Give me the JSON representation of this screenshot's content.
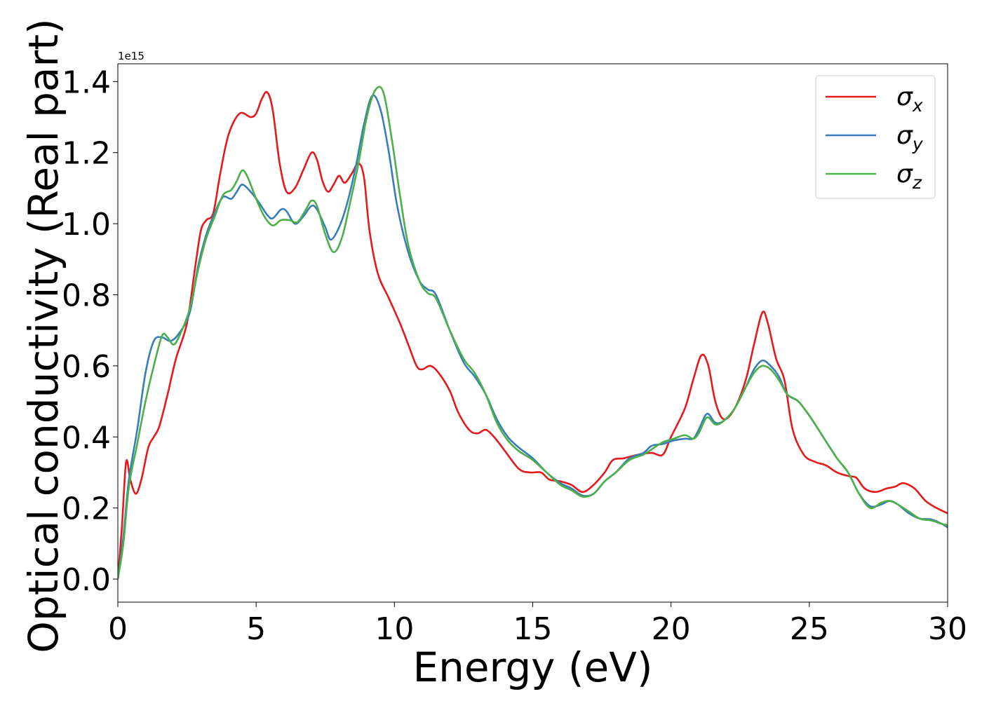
{
  "chart_data": {
    "type": "line",
    "xlabel": "Energy (eV)",
    "ylabel": "Optical conductivity (Real part)",
    "y_offset_label": "1e15",
    "xlim": [
      0,
      30
    ],
    "ylim": [
      -0.065,
      1.45
    ],
    "y_scale_factor": 1000000000000000.0,
    "xticks": [
      0,
      5,
      10,
      15,
      20,
      25,
      30
    ],
    "xtick_labels": [
      "0",
      "5",
      "10",
      "15",
      "20",
      "25",
      "30"
    ],
    "yticks": [
      0.0,
      0.2,
      0.4,
      0.6,
      0.8,
      1.0,
      1.2,
      1.4
    ],
    "ytick_labels": [
      "0.0",
      "0.2",
      "0.4",
      "0.6",
      "0.8",
      "1.0",
      "1.2",
      "1.4"
    ],
    "grid": false,
    "legend_position": "top-right",
    "series": [
      {
        "name": "σx",
        "label_base": "σ",
        "label_sub": "x",
        "color": "#e41a1c",
        "points": [
          [
            0,
            0
          ],
          [
            0.15,
            0.15
          ],
          [
            0.3,
            0.33
          ],
          [
            0.45,
            0.28
          ],
          [
            0.65,
            0.24
          ],
          [
            0.85,
            0.28
          ],
          [
            1.1,
            0.37
          ],
          [
            1.3,
            0.4
          ],
          [
            1.5,
            0.43
          ],
          [
            1.8,
            0.52
          ],
          [
            2.1,
            0.62
          ],
          [
            2.5,
            0.72
          ],
          [
            2.8,
            0.88
          ],
          [
            3.0,
            0.98
          ],
          [
            3.2,
            1.01
          ],
          [
            3.45,
            1.03
          ],
          [
            3.7,
            1.14
          ],
          [
            4.0,
            1.25
          ],
          [
            4.4,
            1.31
          ],
          [
            4.8,
            1.3
          ],
          [
            5.0,
            1.31
          ],
          [
            5.2,
            1.35
          ],
          [
            5.4,
            1.37
          ],
          [
            5.6,
            1.32
          ],
          [
            5.85,
            1.17
          ],
          [
            6.1,
            1.09
          ],
          [
            6.4,
            1.1
          ],
          [
            6.7,
            1.15
          ],
          [
            7.0,
            1.2
          ],
          [
            7.2,
            1.18
          ],
          [
            7.4,
            1.12
          ],
          [
            7.6,
            1.09
          ],
          [
            7.8,
            1.11
          ],
          [
            8.0,
            1.135
          ],
          [
            8.2,
            1.115
          ],
          [
            8.45,
            1.14
          ],
          [
            8.7,
            1.17
          ],
          [
            8.9,
            1.13
          ],
          [
            9.1,
            0.98
          ],
          [
            9.4,
            0.86
          ],
          [
            9.8,
            0.79
          ],
          [
            10.2,
            0.72
          ],
          [
            10.5,
            0.66
          ],
          [
            10.8,
            0.6
          ],
          [
            11.0,
            0.59
          ],
          [
            11.3,
            0.6
          ],
          [
            11.6,
            0.58
          ],
          [
            12.0,
            0.53
          ],
          [
            12.3,
            0.47
          ],
          [
            12.7,
            0.42
          ],
          [
            13.0,
            0.41
          ],
          [
            13.3,
            0.42
          ],
          [
            13.6,
            0.4
          ],
          [
            14.0,
            0.36
          ],
          [
            14.5,
            0.31
          ],
          [
            14.9,
            0.3
          ],
          [
            15.3,
            0.3
          ],
          [
            15.6,
            0.28
          ],
          [
            16.0,
            0.275
          ],
          [
            16.4,
            0.265
          ],
          [
            16.8,
            0.245
          ],
          [
            17.2,
            0.265
          ],
          [
            17.6,
            0.3
          ],
          [
            17.9,
            0.335
          ],
          [
            18.3,
            0.34
          ],
          [
            18.8,
            0.35
          ],
          [
            19.3,
            0.355
          ],
          [
            19.7,
            0.35
          ],
          [
            20.0,
            0.4
          ],
          [
            20.5,
            0.48
          ],
          [
            20.8,
            0.56
          ],
          [
            21.1,
            0.63
          ],
          [
            21.35,
            0.6
          ],
          [
            21.6,
            0.5
          ],
          [
            21.9,
            0.45
          ],
          [
            22.3,
            0.48
          ],
          [
            22.7,
            0.56
          ],
          [
            23.0,
            0.66
          ],
          [
            23.3,
            0.75
          ],
          [
            23.5,
            0.72
          ],
          [
            23.8,
            0.62
          ],
          [
            24.1,
            0.56
          ],
          [
            24.4,
            0.42
          ],
          [
            24.8,
            0.35
          ],
          [
            25.2,
            0.33
          ],
          [
            25.6,
            0.32
          ],
          [
            26.0,
            0.3
          ],
          [
            26.4,
            0.29
          ],
          [
            26.7,
            0.285
          ],
          [
            27.0,
            0.255
          ],
          [
            27.4,
            0.245
          ],
          [
            27.8,
            0.255
          ],
          [
            28.1,
            0.26
          ],
          [
            28.4,
            0.27
          ],
          [
            28.8,
            0.255
          ],
          [
            29.2,
            0.22
          ],
          [
            29.6,
            0.2
          ],
          [
            30.0,
            0.185
          ]
        ]
      },
      {
        "name": "σy",
        "label_base": "σ",
        "label_sub": "y",
        "color": "#377eb8",
        "points": [
          [
            0,
            0
          ],
          [
            0.2,
            0.12
          ],
          [
            0.4,
            0.28
          ],
          [
            0.7,
            0.42
          ],
          [
            1.0,
            0.58
          ],
          [
            1.3,
            0.67
          ],
          [
            1.6,
            0.68
          ],
          [
            1.9,
            0.67
          ],
          [
            2.2,
            0.69
          ],
          [
            2.6,
            0.75
          ],
          [
            2.9,
            0.88
          ],
          [
            3.2,
            0.97
          ],
          [
            3.5,
            1.03
          ],
          [
            3.8,
            1.075
          ],
          [
            4.1,
            1.07
          ],
          [
            4.3,
            1.09
          ],
          [
            4.5,
            1.11
          ],
          [
            4.8,
            1.09
          ],
          [
            5.1,
            1.06
          ],
          [
            5.4,
            1.025
          ],
          [
            5.6,
            1.015
          ],
          [
            5.9,
            1.04
          ],
          [
            6.1,
            1.035
          ],
          [
            6.4,
            1.0
          ],
          [
            6.7,
            1.02
          ],
          [
            7.0,
            1.05
          ],
          [
            7.2,
            1.04
          ],
          [
            7.5,
            0.99
          ],
          [
            7.7,
            0.955
          ],
          [
            8.0,
            0.99
          ],
          [
            8.3,
            1.06
          ],
          [
            8.6,
            1.16
          ],
          [
            8.9,
            1.28
          ],
          [
            9.2,
            1.36
          ],
          [
            9.5,
            1.32
          ],
          [
            9.8,
            1.2
          ],
          [
            10.1,
            1.05
          ],
          [
            10.5,
            0.92
          ],
          [
            10.9,
            0.84
          ],
          [
            11.2,
            0.815
          ],
          [
            11.5,
            0.8
          ],
          [
            12.0,
            0.7
          ],
          [
            12.5,
            0.61
          ],
          [
            12.9,
            0.57
          ],
          [
            13.3,
            0.52
          ],
          [
            13.7,
            0.45
          ],
          [
            14.1,
            0.4
          ],
          [
            14.5,
            0.37
          ],
          [
            15.0,
            0.34
          ],
          [
            15.5,
            0.3
          ],
          [
            16.0,
            0.27
          ],
          [
            16.4,
            0.255
          ],
          [
            16.8,
            0.235
          ],
          [
            17.2,
            0.24
          ],
          [
            17.6,
            0.275
          ],
          [
            18.0,
            0.3
          ],
          [
            18.5,
            0.34
          ],
          [
            19.0,
            0.355
          ],
          [
            19.3,
            0.375
          ],
          [
            19.7,
            0.38
          ],
          [
            20.1,
            0.39
          ],
          [
            20.5,
            0.395
          ],
          [
            20.8,
            0.395
          ],
          [
            21.0,
            0.42
          ],
          [
            21.3,
            0.465
          ],
          [
            21.6,
            0.44
          ],
          [
            21.9,
            0.445
          ],
          [
            22.3,
            0.48
          ],
          [
            22.7,
            0.54
          ],
          [
            23.0,
            0.59
          ],
          [
            23.3,
            0.615
          ],
          [
            23.6,
            0.6
          ],
          [
            23.9,
            0.57
          ],
          [
            24.2,
            0.52
          ],
          [
            24.6,
            0.5
          ],
          [
            25.0,
            0.46
          ],
          [
            25.5,
            0.4
          ],
          [
            26.0,
            0.34
          ],
          [
            26.4,
            0.3
          ],
          [
            26.8,
            0.24
          ],
          [
            27.2,
            0.205
          ],
          [
            27.6,
            0.21
          ],
          [
            27.9,
            0.22
          ],
          [
            28.2,
            0.21
          ],
          [
            28.6,
            0.185
          ],
          [
            29.0,
            0.17
          ],
          [
            29.4,
            0.168
          ],
          [
            29.8,
            0.155
          ],
          [
            30.0,
            0.145
          ]
        ]
      },
      {
        "name": "σz",
        "label_base": "σ",
        "label_sub": "z",
        "color": "#4daf4a",
        "points": [
          [
            0,
            0
          ],
          [
            0.2,
            0.1
          ],
          [
            0.4,
            0.26
          ],
          [
            0.7,
            0.38
          ],
          [
            1.0,
            0.5
          ],
          [
            1.3,
            0.6
          ],
          [
            1.6,
            0.685
          ],
          [
            1.8,
            0.68
          ],
          [
            2.0,
            0.66
          ],
          [
            2.2,
            0.68
          ],
          [
            2.6,
            0.76
          ],
          [
            2.9,
            0.87
          ],
          [
            3.2,
            0.96
          ],
          [
            3.5,
            1.02
          ],
          [
            3.8,
            1.08
          ],
          [
            4.1,
            1.095
          ],
          [
            4.3,
            1.12
          ],
          [
            4.5,
            1.15
          ],
          [
            4.7,
            1.13
          ],
          [
            5.0,
            1.07
          ],
          [
            5.3,
            1.02
          ],
          [
            5.6,
            0.995
          ],
          [
            5.9,
            1.01
          ],
          [
            6.2,
            1.01
          ],
          [
            6.5,
            1.005
          ],
          [
            6.8,
            1.04
          ],
          [
            7.0,
            1.065
          ],
          [
            7.2,
            1.05
          ],
          [
            7.5,
            0.97
          ],
          [
            7.8,
            0.92
          ],
          [
            8.1,
            0.96
          ],
          [
            8.4,
            1.06
          ],
          [
            8.7,
            1.17
          ],
          [
            9.0,
            1.3
          ],
          [
            9.3,
            1.375
          ],
          [
            9.6,
            1.37
          ],
          [
            9.9,
            1.24
          ],
          [
            10.2,
            1.08
          ],
          [
            10.5,
            0.94
          ],
          [
            10.9,
            0.84
          ],
          [
            11.2,
            0.805
          ],
          [
            11.5,
            0.79
          ],
          [
            12.0,
            0.7
          ],
          [
            12.5,
            0.62
          ],
          [
            12.9,
            0.58
          ],
          [
            13.3,
            0.52
          ],
          [
            13.7,
            0.44
          ],
          [
            14.1,
            0.39
          ],
          [
            14.5,
            0.36
          ],
          [
            15.0,
            0.335
          ],
          [
            15.5,
            0.3
          ],
          [
            16.0,
            0.265
          ],
          [
            16.4,
            0.25
          ],
          [
            16.8,
            0.232
          ],
          [
            17.2,
            0.24
          ],
          [
            17.6,
            0.275
          ],
          [
            18.0,
            0.3
          ],
          [
            18.5,
            0.335
          ],
          [
            19.0,
            0.35
          ],
          [
            19.3,
            0.365
          ],
          [
            19.7,
            0.385
          ],
          [
            20.1,
            0.395
          ],
          [
            20.5,
            0.405
          ],
          [
            20.8,
            0.395
          ],
          [
            21.0,
            0.41
          ],
          [
            21.3,
            0.455
          ],
          [
            21.6,
            0.435
          ],
          [
            21.9,
            0.445
          ],
          [
            22.3,
            0.48
          ],
          [
            22.7,
            0.54
          ],
          [
            23.0,
            0.58
          ],
          [
            23.3,
            0.6
          ],
          [
            23.6,
            0.59
          ],
          [
            23.9,
            0.56
          ],
          [
            24.2,
            0.52
          ],
          [
            24.6,
            0.5
          ],
          [
            25.0,
            0.46
          ],
          [
            25.5,
            0.4
          ],
          [
            26.0,
            0.34
          ],
          [
            26.4,
            0.3
          ],
          [
            26.8,
            0.24
          ],
          [
            27.2,
            0.2
          ],
          [
            27.6,
            0.215
          ],
          [
            27.9,
            0.22
          ],
          [
            28.2,
            0.21
          ],
          [
            28.6,
            0.19
          ],
          [
            29.0,
            0.17
          ],
          [
            29.4,
            0.165
          ],
          [
            29.8,
            0.155
          ],
          [
            30.0,
            0.152
          ]
        ]
      }
    ]
  }
}
